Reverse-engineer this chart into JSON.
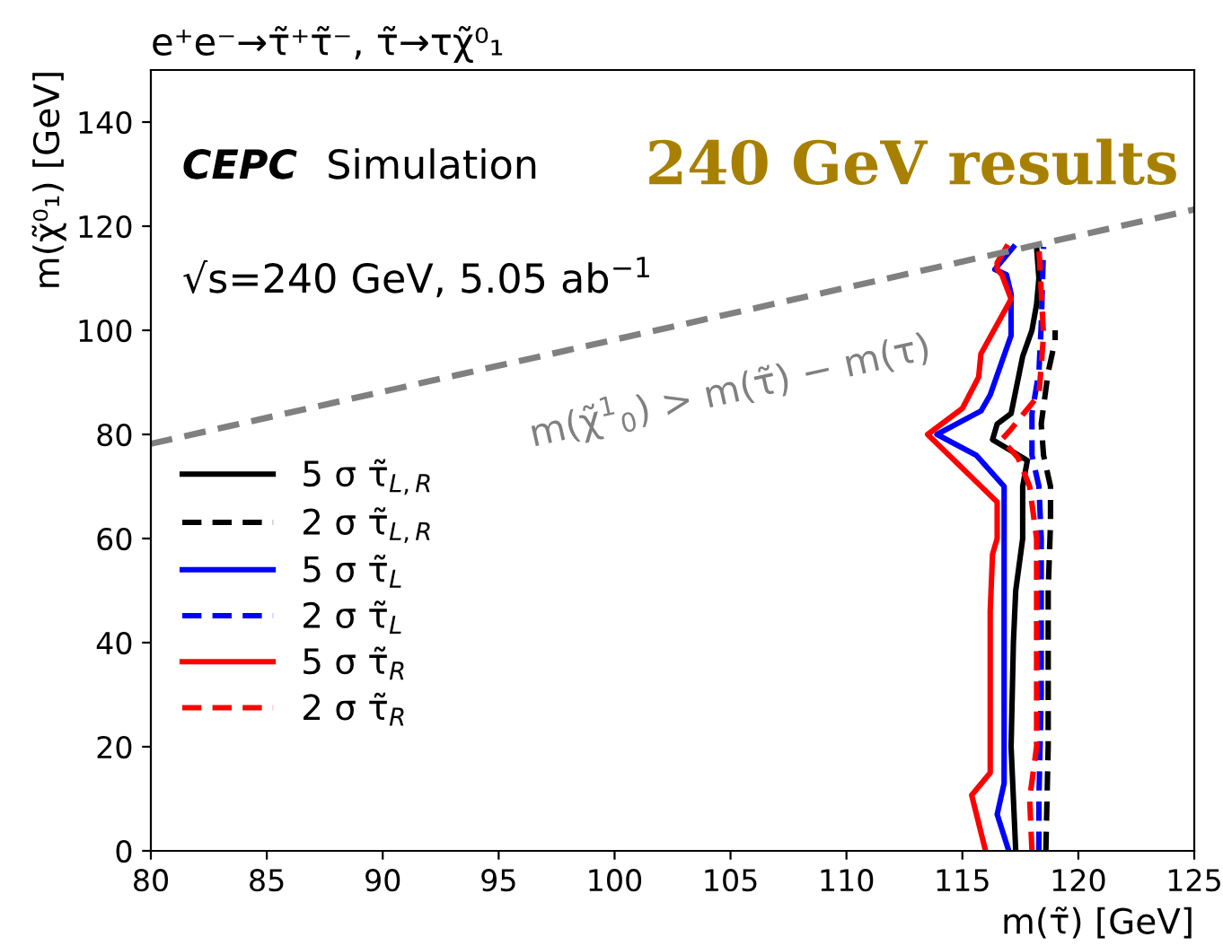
{
  "chart_data": {
    "type": "line",
    "title": "e⁺e⁻→τ̃⁺τ̃⁻, τ̃→τχ̃⁰₁",
    "xlabel": "m(τ̃) [GeV]",
    "ylabel": "m(χ̃⁰₁) [GeV]",
    "xlim": [
      80,
      125
    ],
    "xticks": [
      80,
      85,
      90,
      95,
      100,
      105,
      110,
      115,
      120,
      125
    ],
    "ylim": [
      0,
      150
    ],
    "yticks": [
      0,
      20,
      40,
      60,
      80,
      100,
      120,
      140
    ],
    "grid": false,
    "legend": "left",
    "annotations": [
      "CEPC",
      "Simulation",
      "√s=240 GeV, 5.05 ab$^{−1}$",
      "240 GeV results",
      "m(χ̃$^{1}$$_{0}$) > m(τ̃) − m(τ)"
    ],
    "series": [
      {
        "name": "5 σ τ̃$_{L,R}$",
        "color": "#000000",
        "line_style": "solid",
        "x": [
          117.3,
          117.2,
          117.1,
          117.2,
          117.3,
          117.6,
          117.6,
          117.8,
          116.3,
          116.5,
          117.1,
          117.6,
          118.0,
          118.2,
          118.3,
          118.2
        ],
        "values": [
          0,
          10,
          20,
          40,
          50,
          60,
          70,
          75,
          79,
          82,
          84,
          95,
          100,
          105,
          110,
          116
        ]
      },
      {
        "name": "2 σ τ̃$_{L,R}$",
        "color": "#000000",
        "line_style": "dashed",
        "x": [
          118.6,
          118.7,
          118.7,
          118.8,
          118.8,
          118.5,
          118.4,
          118.7,
          119.0,
          119.0
        ],
        "values": [
          0,
          20,
          50,
          63,
          70,
          76,
          82,
          92,
          98,
          100
        ]
      },
      {
        "name": "5 σ τ̃$_{L}$",
        "color": "#0000ff",
        "line_style": "solid",
        "x": [
          117.0,
          116.5,
          116.8,
          116.8,
          116.8,
          116.8,
          115.6,
          113.9,
          115.8,
          116.2,
          117.1,
          117.1,
          116.9,
          116.4,
          117.2
        ],
        "values": [
          0,
          7,
          13,
          40,
          60,
          70,
          76,
          80,
          84.5,
          87.6,
          99,
          107,
          110.7,
          111.7,
          116
        ]
      },
      {
        "name": "2 σ τ̃$_{L}$",
        "color": "#0000ff",
        "line_style": "dashed",
        "x": [
          118.3,
          118.3,
          118.4,
          118.4,
          118.3,
          118.0,
          118.0,
          118.3,
          118.4,
          118.5
        ],
        "values": [
          0,
          10,
          30,
          60,
          70,
          76,
          84,
          92,
          101,
          116
        ]
      },
      {
        "name": "5 σ τ̃$_{R}$",
        "color": "#ff0000",
        "line_style": "solid",
        "x": [
          116.0,
          115.4,
          116.2,
          116.2,
          116.3,
          116.5,
          116.5,
          113.5,
          115.0,
          115.7,
          115.8,
          117.1,
          116.7,
          116.5,
          116.5,
          116.9
        ],
        "values": [
          0,
          10.7,
          15,
          46,
          57,
          60,
          67,
          80,
          85,
          91,
          95.5,
          106,
          110.7,
          111.7,
          113,
          116
        ]
      },
      {
        "name": "2 σ τ̃$_{R}$",
        "color": "#ff0000",
        "line_style": "dashed",
        "x": [
          118.0,
          117.9,
          118.2,
          118.2,
          117.9,
          117.4,
          116.7,
          117.1,
          118.3,
          118.5,
          118.3
        ],
        "values": [
          0,
          10,
          20,
          60,
          70,
          75.5,
          79,
          81,
          87.6,
          99,
          116
        ]
      },
      {
        "color": "#808080",
        "line_style": "dashed",
        "x": [
          80,
          125
        ],
        "values": [
          78.2,
          123.2
        ]
      }
    ]
  }
}
